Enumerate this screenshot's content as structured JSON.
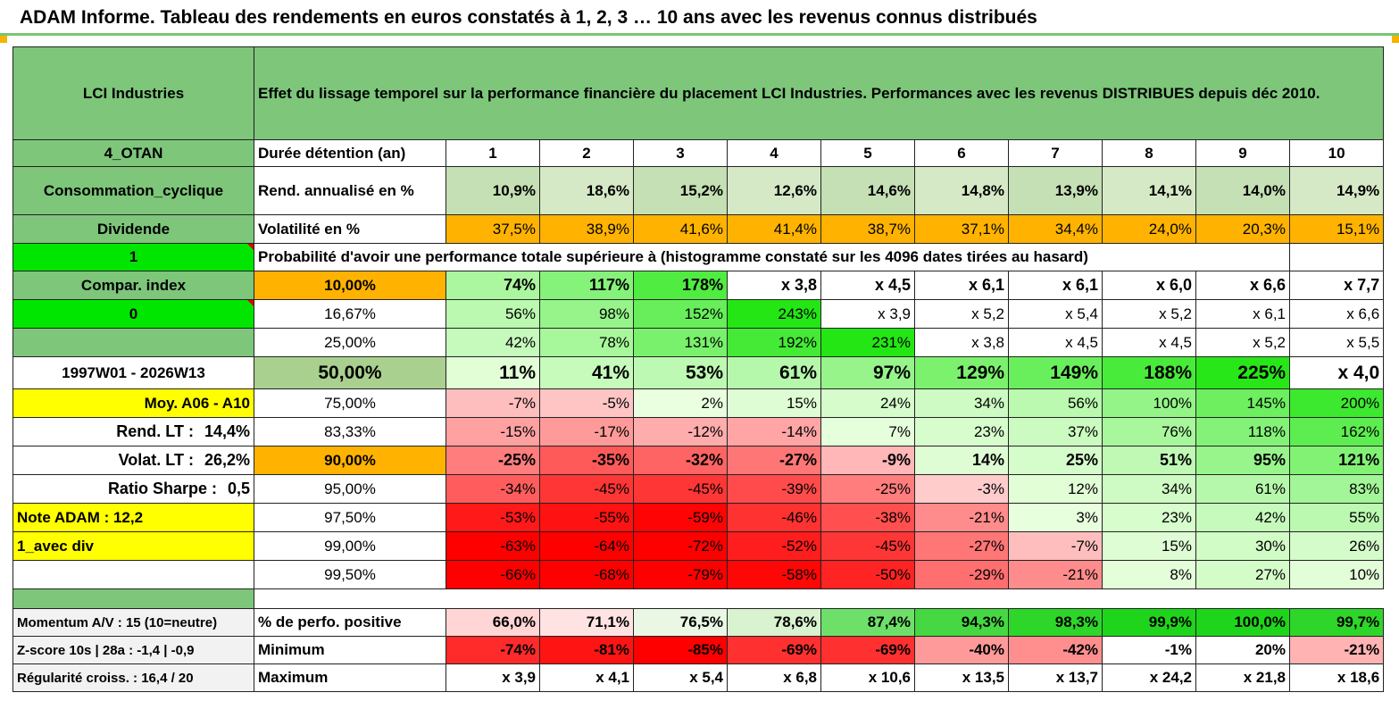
{
  "header": {
    "title": "ADAM Informe. Tableau des rendements en euros constatés à 1, 2, 3 … 10 ans avec les revenus connus distribués"
  },
  "colors": {
    "green_header": "#7dc67a",
    "orange": "#ffb300",
    "yellow": "#ffff00",
    "bright_green": "#00e600",
    "red_text": "#e00000"
  },
  "left": {
    "name": "LCI Industries",
    "group": "4_OTAN",
    "sector": "Consommation_cyclique",
    "dividend": "Dividende",
    "one": "1",
    "compar": "Compar. index",
    "zero": "0",
    "period": "1997W01 - 2026W13",
    "moy": "Moy. A06 - A10",
    "rend_label": "Rend. LT :",
    "rend_value": "14,4%",
    "volat_label": "Volat. LT :",
    "volat_value": "26,2%",
    "sharpe_label": "Ratio Sharpe :",
    "sharpe_value": "0,5",
    "note": "Note ADAM : 12,2",
    "avec_div": "1_avec div",
    "momentum": "Momentum A/V : 15 (10=neutre)",
    "zscore": "Z-score 10s | 28a : -1,4 | -0,9",
    "regularite": "Régularité croiss. : 16,4 / 20"
  },
  "main_title": "Effet du lissage temporel sur la performance financière du placement LCI Industries. Performances avec les revenus DISTRIBUES depuis déc 2010.",
  "duree_label": "Durée détention (an)",
  "years": [
    "1",
    "2",
    "3",
    "4",
    "5",
    "6",
    "7",
    "8",
    "9",
    "10"
  ],
  "rend_row": {
    "label": "Rend. annualisé en %",
    "values": [
      "10,9%",
      "18,6%",
      "15,2%",
      "12,6%",
      "14,6%",
      "14,8%",
      "13,9%",
      "14,1%",
      "14,0%",
      "14,9%"
    ]
  },
  "vol_row": {
    "label": "Volatilité en %",
    "values": [
      "37,5%",
      "38,9%",
      "41,6%",
      "41,4%",
      "38,7%",
      "37,1%",
      "34,4%",
      "24,0%",
      "20,3%",
      "15,1%"
    ]
  },
  "prob_title": "Probabilité d'avoir une performance totale supérieure à (histogramme constaté sur les 4096 dates tirées au hasard)",
  "prob_rows": [
    {
      "pct": "10,00%",
      "values": [
        "74%",
        "117%",
        "178%",
        "x 3,8",
        "x 4,5",
        "x 6,1",
        "x 6,1",
        "x 6,0",
        "x 6,6",
        "x 7,7"
      ]
    },
    {
      "pct": "16,67%",
      "values": [
        "56%",
        "98%",
        "152%",
        "243%",
        "x 3,9",
        "x 5,2",
        "x 5,4",
        "x 5,2",
        "x 6,1",
        "x 6,6"
      ]
    },
    {
      "pct": "25,00%",
      "values": [
        "42%",
        "78%",
        "131%",
        "192%",
        "231%",
        "x 3,8",
        "x 4,5",
        "x 4,5",
        "x 5,2",
        "x 5,5"
      ]
    },
    {
      "pct": "50,00%",
      "values": [
        "11%",
        "41%",
        "53%",
        "61%",
        "97%",
        "129%",
        "149%",
        "188%",
        "225%",
        "x 4,0"
      ]
    },
    {
      "pct": "75,00%",
      "values": [
        "-7%",
        "-5%",
        "2%",
        "15%",
        "24%",
        "34%",
        "56%",
        "100%",
        "145%",
        "200%"
      ]
    },
    {
      "pct": "83,33%",
      "values": [
        "-15%",
        "-17%",
        "-12%",
        "-14%",
        "7%",
        "23%",
        "37%",
        "76%",
        "118%",
        "162%"
      ]
    },
    {
      "pct": "90,00%",
      "values": [
        "-25%",
        "-35%",
        "-32%",
        "-27%",
        "-9%",
        "14%",
        "25%",
        "51%",
        "95%",
        "121%"
      ]
    },
    {
      "pct": "95,00%",
      "values": [
        "-34%",
        "-45%",
        "-45%",
        "-39%",
        "-25%",
        "-3%",
        "12%",
        "34%",
        "61%",
        "83%"
      ]
    },
    {
      "pct": "97,50%",
      "values": [
        "-53%",
        "-55%",
        "-59%",
        "-46%",
        "-38%",
        "-21%",
        "3%",
        "23%",
        "42%",
        "55%"
      ]
    },
    {
      "pct": "99,00%",
      "values": [
        "-63%",
        "-64%",
        "-72%",
        "-52%",
        "-45%",
        "-27%",
        "-7%",
        "15%",
        "30%",
        "26%"
      ]
    },
    {
      "pct": "99,50%",
      "values": [
        "-66%",
        "-68%",
        "-79%",
        "-58%",
        "-50%",
        "-29%",
        "-21%",
        "8%",
        "27%",
        "10%"
      ]
    }
  ],
  "bottom_rows": [
    {
      "label": "% de perfo. positive",
      "values": [
        "66,0%",
        "71,1%",
        "76,5%",
        "78,6%",
        "87,4%",
        "94,3%",
        "98,3%",
        "99,9%",
        "100,0%",
        "99,7%"
      ]
    },
    {
      "label": "Minimum",
      "values": [
        "-74%",
        "-81%",
        "-85%",
        "-69%",
        "-69%",
        "-40%",
        "-42%",
        "-1%",
        "20%",
        "-21%"
      ]
    },
    {
      "label": "Maximum",
      "values": [
        "x 3,9",
        "x 4,1",
        "x 5,4",
        "x 6,8",
        "x 10,6",
        "x 13,5",
        "x 13,7",
        "x 24,2",
        "x 21,8",
        "x 18,6"
      ]
    }
  ]
}
